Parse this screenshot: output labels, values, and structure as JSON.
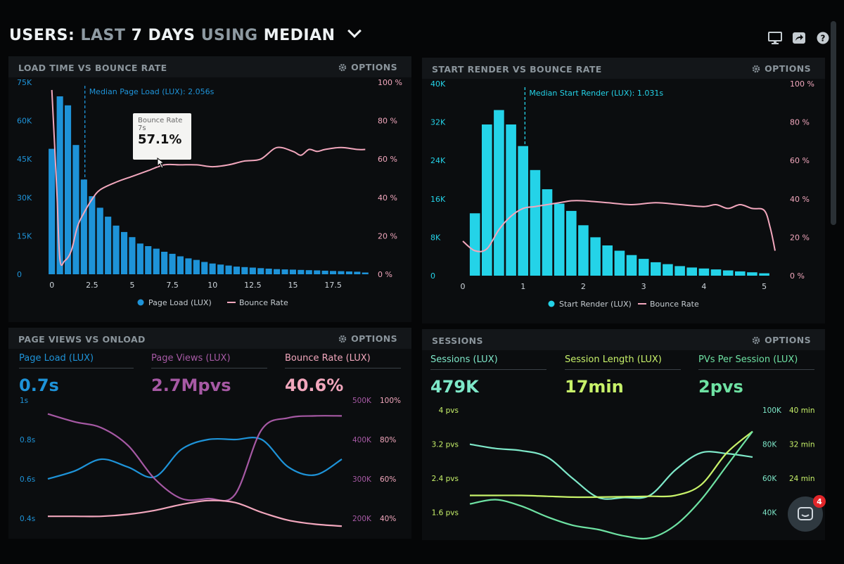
{
  "header": {
    "title_users": "USERS:",
    "title_last": "LAST",
    "title_days": "7 DAYS",
    "title_using": "USING",
    "title_median": "MEDIAN",
    "icons": [
      "monitor-icon",
      "share-icon",
      "help-icon"
    ]
  },
  "panels": {
    "load_time": {
      "title": "LOAD TIME VS BOUNCE RATE",
      "options": "OPTIONS"
    },
    "start_render": {
      "title": "START RENDER VS BOUNCE RATE",
      "options": "OPTIONS"
    },
    "page_views": {
      "title": "PAGE VIEWS VS ONLOAD",
      "options": "OPTIONS"
    },
    "sessions": {
      "title": "SESSIONS",
      "options": "OPTIONS"
    }
  },
  "metrics": {
    "page_load": {
      "label": "Page Load (LUX)",
      "value": "0.7s"
    },
    "page_views": {
      "label": "Page Views (LUX)",
      "value": "2.7Mpvs"
    },
    "bounce_rate": {
      "label": "Bounce Rate (LUX)",
      "value": "40.6%"
    },
    "sessions": {
      "label": "Sessions (LUX)",
      "value": "479K"
    },
    "session_length": {
      "label": "Session Length (LUX)",
      "value": "17min"
    },
    "pvs_per_session": {
      "label": "PVs Per Session (LUX)",
      "value": "2pvs"
    }
  },
  "tooltip": {
    "label": "Bounce Rate",
    "sub": "7s",
    "value": "57.1%"
  },
  "chat": {
    "badge": "4"
  },
  "colors": {
    "blue": "#1e93d8",
    "cyan": "#24d3e8",
    "pink": "#f2a7bd",
    "purple": "#a659a4",
    "teal": "#7ee8c9",
    "lime": "#c8f26a",
    "green": "#6ee2a3",
    "muted": "#8b959c"
  },
  "chart_data": [
    {
      "id": "load_time",
      "type": "bar",
      "title": "LOAD TIME VS BOUNCE RATE",
      "annotation": "Median Page Load (LUX): 2.056s",
      "annotation_x": 2.056,
      "x_ticks": [
        "0",
        "2.5",
        "5",
        "7.5",
        "10",
        "12.5",
        "15",
        "17.5"
      ],
      "x_tick_values": [
        0,
        2.5,
        5,
        7.5,
        10,
        12.5,
        15,
        17.5
      ],
      "xlim": [
        -0.25,
        19.75
      ],
      "y_ticks_left": [
        "0",
        "15K",
        "30K",
        "45K",
        "60K",
        "75K"
      ],
      "y_tick_left_values": [
        0,
        15000,
        30000,
        45000,
        60000,
        75000
      ],
      "y_ticks_right": [
        "0 %",
        "20 %",
        "40 %",
        "60 %",
        "80 %",
        "100 %"
      ],
      "ylim": [
        0,
        75000
      ],
      "bar_width": 0.4,
      "bar_x": [
        0,
        0.5,
        1,
        1.5,
        2,
        2.5,
        3,
        3.5,
        4,
        4.5,
        5,
        5.5,
        6,
        6.5,
        7,
        7.5,
        8,
        8.5,
        9,
        9.5,
        10,
        10.5,
        11,
        11.5,
        12,
        12.5,
        13,
        13.5,
        14,
        14.5,
        15,
        15.5,
        16,
        16.5,
        17,
        17.5,
        18,
        18.5,
        19,
        19.5
      ],
      "series": [
        {
          "name": "Page Load (LUX)",
          "values": [
            49000,
            69500,
            66000,
            50500,
            37000,
            30500,
            26000,
            22500,
            19000,
            16500,
            14500,
            12000,
            11000,
            10000,
            8800,
            8000,
            7000,
            6200,
            5600,
            4800,
            4200,
            3800,
            3400,
            3000,
            2800,
            2600,
            2400,
            2200,
            2000,
            1900,
            1800,
            1700,
            1600,
            1500,
            1400,
            1300,
            1200,
            1100,
            1000,
            700
          ]
        },
        {
          "name": "Bounce Rate",
          "x": [
            0,
            0.3,
            0.5,
            0.8,
            1.2,
            1.6,
            2,
            2.5,
            3,
            4,
            5,
            6,
            7,
            8,
            9,
            10,
            11,
            12,
            13,
            14,
            15,
            15.5,
            16,
            16.5,
            17,
            18,
            19,
            19.5
          ],
          "values": [
            96,
            45,
            8,
            7,
            12,
            25,
            32,
            39,
            44,
            48,
            51,
            54,
            57,
            57,
            57,
            56,
            57,
            59,
            60,
            66,
            64,
            62,
            65,
            64,
            65,
            66,
            65,
            65
          ]
        }
      ]
    },
    {
      "id": "start_render",
      "type": "bar",
      "title": "START RENDER VS BOUNCE RATE",
      "annotation": "Median Start Render (LUX): 1.031s",
      "annotation_x": 1.031,
      "x_ticks": [
        "0",
        "1",
        "2",
        "3",
        "4",
        "5"
      ],
      "x_tick_values": [
        0,
        1,
        2,
        3,
        4,
        5
      ],
      "xlim": [
        0,
        5.18
      ],
      "y_ticks_left": [
        "0",
        "8K",
        "16K",
        "24K",
        "32K",
        "40K"
      ],
      "y_tick_left_values": [
        0,
        8000,
        16000,
        24000,
        32000,
        40000
      ],
      "y_ticks_right": [
        "0 %",
        "20 %",
        "40 %",
        "60 %",
        "80 %",
        "100 %"
      ],
      "ylim": [
        0,
        40000
      ],
      "bar_width": 0.17,
      "bar_x": [
        0.2,
        0.4,
        0.6,
        0.8,
        1.0,
        1.2,
        1.4,
        1.6,
        1.8,
        2.0,
        2.2,
        2.4,
        2.6,
        2.8,
        3.0,
        3.2,
        3.4,
        3.6,
        3.8,
        4.0,
        4.2,
        4.4,
        4.6,
        4.8,
        5.0
      ],
      "series": [
        {
          "name": "Start Render (LUX)",
          "values": [
            13000,
            31500,
            34500,
            31500,
            27000,
            22000,
            18000,
            15000,
            13500,
            10500,
            8000,
            6300,
            5200,
            4300,
            3500,
            2800,
            2400,
            2000,
            1700,
            1500,
            1300,
            1100,
            900,
            700,
            500
          ]
        },
        {
          "name": "Bounce Rate",
          "x": [
            0,
            0.2,
            0.4,
            0.6,
            0.8,
            1.0,
            1.2,
            1.4,
            1.6,
            1.8,
            2.0,
            2.4,
            2.8,
            3.2,
            3.6,
            4.0,
            4.2,
            4.4,
            4.6,
            4.8,
            5.0,
            5.1,
            5.18
          ],
          "values": [
            18,
            13,
            14,
            24,
            31,
            35,
            36,
            37,
            38,
            39,
            39,
            38,
            37,
            38,
            37,
            36,
            37,
            35,
            37,
            35,
            34,
            25,
            13
          ]
        }
      ]
    },
    {
      "id": "page_views",
      "type": "line",
      "title": "PAGE VIEWS VS ONLOAD",
      "y_ticks_left": [
        "1s",
        "0.8s",
        "0.6s",
        "0.4s"
      ],
      "y_tick_left_values": [
        1,
        0.8,
        0.6,
        0.4
      ],
      "y_ticks_mid": [
        "500K",
        "400K",
        "300K",
        "200K"
      ],
      "y_ticks_right": [
        "100%",
        "80%",
        "60%",
        "40%"
      ],
      "ylim": [
        0.35,
        1
      ],
      "series": [
        {
          "name": "Page Load (LUX)",
          "y": [
            0.6,
            0.64,
            0.7,
            0.66,
            0.61,
            0.75,
            0.8,
            0.8,
            0.8,
            0.66,
            0.62,
            0.7
          ]
        },
        {
          "name": "Page Views (LUX)",
          "y": [
            0.93,
            0.89,
            0.86,
            0.77,
            0.6,
            0.5,
            0.5,
            0.52,
            0.85,
            0.91,
            0.92,
            0.92
          ]
        },
        {
          "name": "Bounce Rate (LUX)",
          "y": [
            0.41,
            0.41,
            0.41,
            0.42,
            0.44,
            0.47,
            0.49,
            0.48,
            0.43,
            0.39,
            0.37,
            0.36
          ]
        }
      ]
    },
    {
      "id": "sessions",
      "type": "line",
      "title": "SESSIONS",
      "y_ticks_left": [
        "4 pvs",
        "3.2 pvs",
        "2.4 pvs",
        "1.6 pvs"
      ],
      "y_tick_left_values": [
        4,
        3.2,
        2.4,
        1.6
      ],
      "y_ticks_mid": [
        "100K",
        "80K",
        "60K",
        "40K"
      ],
      "y_ticks_right": [
        "40 min",
        "32 min",
        "24 min",
        "16 min"
      ],
      "ylim": [
        1.2,
        4.2
      ],
      "series": [
        {
          "name": "Sessions (LUX)",
          "y": [
            3.2,
            3.1,
            3.05,
            2.9,
            2.4,
            1.95,
            1.95,
            2.0,
            2.6,
            3.0,
            2.98,
            2.9
          ]
        },
        {
          "name": "Session Length (LUX)",
          "y": [
            2.0,
            2.0,
            2.0,
            1.98,
            1.96,
            1.96,
            1.97,
            1.98,
            2.0,
            2.25,
            3.0,
            3.5
          ]
        },
        {
          "name": "PVs Per Session (LUX)",
          "y": [
            1.8,
            1.9,
            1.75,
            1.5,
            1.3,
            1.2,
            1.05,
            1.0,
            1.3,
            1.9,
            2.7,
            3.5
          ]
        }
      ]
    }
  ]
}
